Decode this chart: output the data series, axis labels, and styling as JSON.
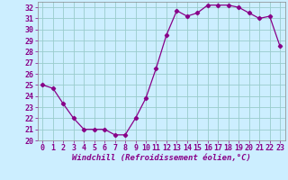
{
  "x": [
    0,
    1,
    2,
    3,
    4,
    5,
    6,
    7,
    8,
    9,
    10,
    11,
    12,
    13,
    14,
    15,
    16,
    17,
    18,
    19,
    20,
    21,
    22,
    23
  ],
  "y": [
    25.0,
    24.7,
    23.3,
    22.0,
    21.0,
    21.0,
    21.0,
    20.5,
    20.5,
    22.0,
    23.8,
    26.5,
    29.5,
    31.7,
    31.2,
    31.5,
    32.2,
    32.2,
    32.2,
    32.0,
    31.5,
    31.0,
    31.2,
    28.5
  ],
  "line_color": "#880088",
  "marker": "D",
  "marker_size": 2.2,
  "bg_color": "#cceeff",
  "grid_color": "#99cccc",
  "xlabel": "Windchill (Refroidissement éolien,°C)",
  "xlabel_fontsize": 6.5,
  "ylim": [
    20,
    32.5
  ],
  "xlim": [
    -0.5,
    23.5
  ],
  "yticks": [
    20,
    21,
    22,
    23,
    24,
    25,
    26,
    27,
    28,
    29,
    30,
    31,
    32
  ],
  "xticks": [
    0,
    1,
    2,
    3,
    4,
    5,
    6,
    7,
    8,
    9,
    10,
    11,
    12,
    13,
    14,
    15,
    16,
    17,
    18,
    19,
    20,
    21,
    22,
    23
  ],
  "tick_fontsize": 6.0,
  "tick_color": "#880088"
}
